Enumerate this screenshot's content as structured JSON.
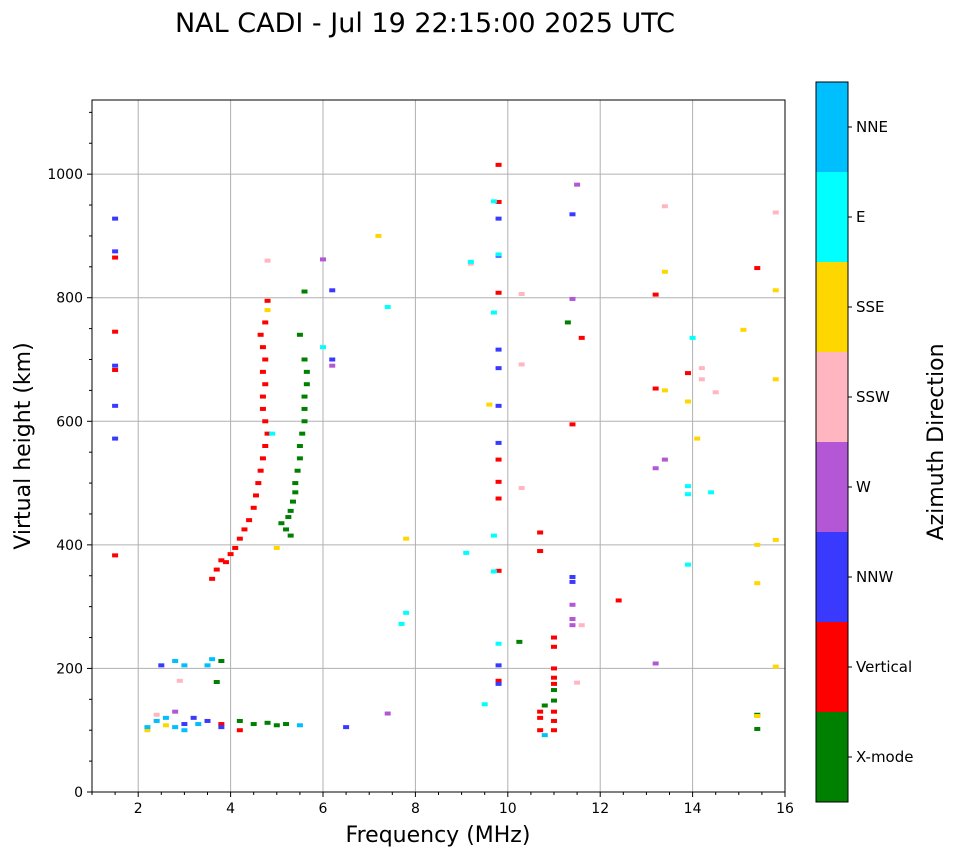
{
  "chart_data": {
    "type": "scatter",
    "title": "NAL CADI - Jul 19 22:15:00 2025 UTC",
    "xlabel": "Frequency (MHz)",
    "ylabel": "Virtual height (km)",
    "xlim": [
      1,
      16
    ],
    "ylim": [
      0,
      1120
    ],
    "xticks": [
      2,
      4,
      6,
      8,
      10,
      12,
      14,
      16
    ],
    "xtick_labels": [
      "2",
      "4",
      "6",
      "8",
      "10",
      "12",
      "14",
      "16"
    ],
    "yticks": [
      0,
      200,
      400,
      600,
      800,
      1000
    ],
    "ytick_labels": [
      "0",
      "200",
      "400",
      "600",
      "800",
      "1000"
    ],
    "grid": true,
    "colorbar": {
      "title": "Azimuth Direction",
      "categories": [
        {
          "label": "X-mode",
          "color": "#008000"
        },
        {
          "label": "Vertical",
          "color": "#ff0000"
        },
        {
          "label": "NNW",
          "color": "#3a3aff"
        },
        {
          "label": "W",
          "color": "#b457d6"
        },
        {
          "label": "SSW",
          "color": "#ffb6c1"
        },
        {
          "label": "SSE",
          "color": "#ffd700"
        },
        {
          "label": "E",
          "color": "#00ffff"
        },
        {
          "label": "NNE",
          "color": "#00bfff"
        }
      ]
    },
    "series": [
      {
        "name": "X-mode",
        "points": [
          [
            5.3,
            415
          ],
          [
            5.2,
            425
          ],
          [
            5.1,
            435
          ],
          [
            5.25,
            445
          ],
          [
            5.3,
            455
          ],
          [
            5.35,
            470
          ],
          [
            5.4,
            485
          ],
          [
            5.4,
            500
          ],
          [
            5.45,
            520
          ],
          [
            5.5,
            540
          ],
          [
            5.5,
            560
          ],
          [
            5.55,
            580
          ],
          [
            5.6,
            600
          ],
          [
            5.6,
            620
          ],
          [
            5.6,
            640
          ],
          [
            5.65,
            660
          ],
          [
            5.65,
            680
          ],
          [
            5.6,
            700
          ],
          [
            5.5,
            740
          ],
          [
            5.6,
            810
          ],
          [
            4.2,
            115
          ],
          [
            4.5,
            110
          ],
          [
            4.8,
            112
          ],
          [
            5.0,
            108
          ],
          [
            5.2,
            110
          ],
          [
            3.8,
            212
          ],
          [
            3.7,
            178
          ],
          [
            11.0,
            165
          ],
          [
            11.0,
            148
          ],
          [
            10.25,
            243
          ],
          [
            11.3,
            760
          ],
          [
            15.4,
            125
          ],
          [
            15.4,
            102
          ],
          [
            10.8,
            140
          ]
        ]
      },
      {
        "name": "Vertical",
        "points": [
          [
            3.6,
            345
          ],
          [
            3.7,
            360
          ],
          [
            3.8,
            375
          ],
          [
            3.9,
            372
          ],
          [
            4.0,
            385
          ],
          [
            4.1,
            395
          ],
          [
            4.2,
            410
          ],
          [
            4.3,
            425
          ],
          [
            4.4,
            440
          ],
          [
            4.5,
            460
          ],
          [
            4.55,
            480
          ],
          [
            4.6,
            500
          ],
          [
            4.65,
            520
          ],
          [
            4.7,
            540
          ],
          [
            4.75,
            560
          ],
          [
            4.8,
            580
          ],
          [
            4.75,
            600
          ],
          [
            4.7,
            620
          ],
          [
            4.7,
            640
          ],
          [
            4.75,
            660
          ],
          [
            4.7,
            680
          ],
          [
            4.75,
            700
          ],
          [
            4.7,
            720
          ],
          [
            4.65,
            740
          ],
          [
            4.75,
            760
          ],
          [
            4.8,
            795
          ],
          [
            1.5,
            865
          ],
          [
            1.5,
            745
          ],
          [
            1.5,
            683
          ],
          [
            1.5,
            383
          ],
          [
            3.8,
            110
          ],
          [
            4.2,
            100
          ],
          [
            10.7,
            120
          ],
          [
            10.7,
            100
          ],
          [
            10.7,
            130
          ],
          [
            10.7,
            390
          ],
          [
            10.7,
            420
          ],
          [
            11.0,
            250
          ],
          [
            11.0,
            235
          ],
          [
            11.0,
            200
          ],
          [
            11.0,
            185
          ],
          [
            11.0,
            175
          ],
          [
            11.0,
            130
          ],
          [
            11.0,
            115
          ],
          [
            11.0,
            100
          ],
          [
            9.8,
            808
          ],
          [
            9.8,
            955
          ],
          [
            9.8,
            1015
          ],
          [
            9.8,
            538
          ],
          [
            9.8,
            502
          ],
          [
            9.8,
            475
          ],
          [
            9.8,
            358
          ],
          [
            9.8,
            180
          ],
          [
            11.4,
            595
          ],
          [
            11.6,
            735
          ],
          [
            12.4,
            310
          ],
          [
            13.2,
            805
          ],
          [
            13.2,
            653
          ],
          [
            13.9,
            678
          ],
          [
            15.4,
            848
          ]
        ]
      },
      {
        "name": "NNW",
        "points": [
          [
            1.5,
            928
          ],
          [
            1.5,
            875
          ],
          [
            1.5,
            690
          ],
          [
            1.5,
            625
          ],
          [
            1.5,
            572
          ],
          [
            3.0,
            110
          ],
          [
            3.2,
            120
          ],
          [
            3.5,
            115
          ],
          [
            3.8,
            105
          ],
          [
            2.5,
            205
          ],
          [
            6.2,
            812
          ],
          [
            6.2,
            700
          ],
          [
            6.5,
            105
          ],
          [
            9.8,
            928
          ],
          [
            9.8,
            868
          ],
          [
            9.8,
            716
          ],
          [
            9.8,
            686
          ],
          [
            9.8,
            625
          ],
          [
            9.8,
            565
          ],
          [
            9.8,
            205
          ],
          [
            9.8,
            175
          ],
          [
            11.4,
            935
          ],
          [
            11.4,
            348
          ],
          [
            11.4,
            340
          ]
        ]
      },
      {
        "name": "W",
        "points": [
          [
            11.5,
            983
          ],
          [
            11.4,
            798
          ],
          [
            11.4,
            303
          ],
          [
            11.4,
            280
          ],
          [
            11.4,
            270
          ],
          [
            13.4,
            538
          ],
          [
            13.2,
            524
          ],
          [
            13.2,
            208
          ],
          [
            6.2,
            690
          ],
          [
            6.0,
            862
          ],
          [
            7.4,
            127
          ],
          [
            2.8,
            130
          ]
        ]
      },
      {
        "name": "SSW",
        "points": [
          [
            13.4,
            948
          ],
          [
            15.8,
            938
          ],
          [
            9.2,
            855
          ],
          [
            10.3,
            806
          ],
          [
            10.3,
            692
          ],
          [
            10.3,
            492
          ],
          [
            14.2,
            686
          ],
          [
            14.2,
            668
          ],
          [
            14.5,
            647
          ],
          [
            11.5,
            177
          ],
          [
            11.6,
            270
          ],
          [
            4.8,
            860
          ],
          [
            2.4,
            125
          ],
          [
            2.9,
            180
          ]
        ]
      },
      {
        "name": "SSE",
        "points": [
          [
            13.4,
            842
          ],
          [
            15.8,
            812
          ],
          [
            15.1,
            748
          ],
          [
            15.8,
            668
          ],
          [
            13.9,
            632
          ],
          [
            14.1,
            572
          ],
          [
            15.4,
            400
          ],
          [
            15.8,
            408
          ],
          [
            15.4,
            338
          ],
          [
            15.8,
            203
          ],
          [
            15.4,
            123
          ],
          [
            7.2,
            900
          ],
          [
            7.8,
            410
          ],
          [
            4.8,
            780
          ],
          [
            2.2,
            100
          ],
          [
            2.6,
            108
          ],
          [
            5.0,
            395
          ],
          [
            9.6,
            627
          ],
          [
            13.4,
            650
          ]
        ]
      },
      {
        "name": "E",
        "points": [
          [
            9.2,
            858
          ],
          [
            9.7,
            956
          ],
          [
            9.8,
            870
          ],
          [
            9.7,
            776
          ],
          [
            9.7,
            415
          ],
          [
            9.7,
            357
          ],
          [
            9.1,
            387
          ],
          [
            7.8,
            290
          ],
          [
            7.7,
            272
          ],
          [
            7.4,
            785
          ],
          [
            13.9,
            495
          ],
          [
            13.9,
            482
          ],
          [
            14.0,
            735
          ],
          [
            14.4,
            485
          ],
          [
            13.9,
            368
          ],
          [
            6.0,
            720
          ],
          [
            4.9,
            580
          ],
          [
            9.5,
            142
          ],
          [
            9.8,
            240
          ]
        ]
      },
      {
        "name": "NNE",
        "points": [
          [
            2.2,
            105
          ],
          [
            2.4,
            115
          ],
          [
            2.6,
            120
          ],
          [
            2.8,
            105
          ],
          [
            3.0,
            100
          ],
          [
            3.3,
            110
          ],
          [
            3.5,
            205
          ],
          [
            3.6,
            215
          ],
          [
            3.0,
            205
          ],
          [
            2.8,
            212
          ],
          [
            5.5,
            108
          ],
          [
            10.8,
            92
          ]
        ]
      }
    ]
  }
}
